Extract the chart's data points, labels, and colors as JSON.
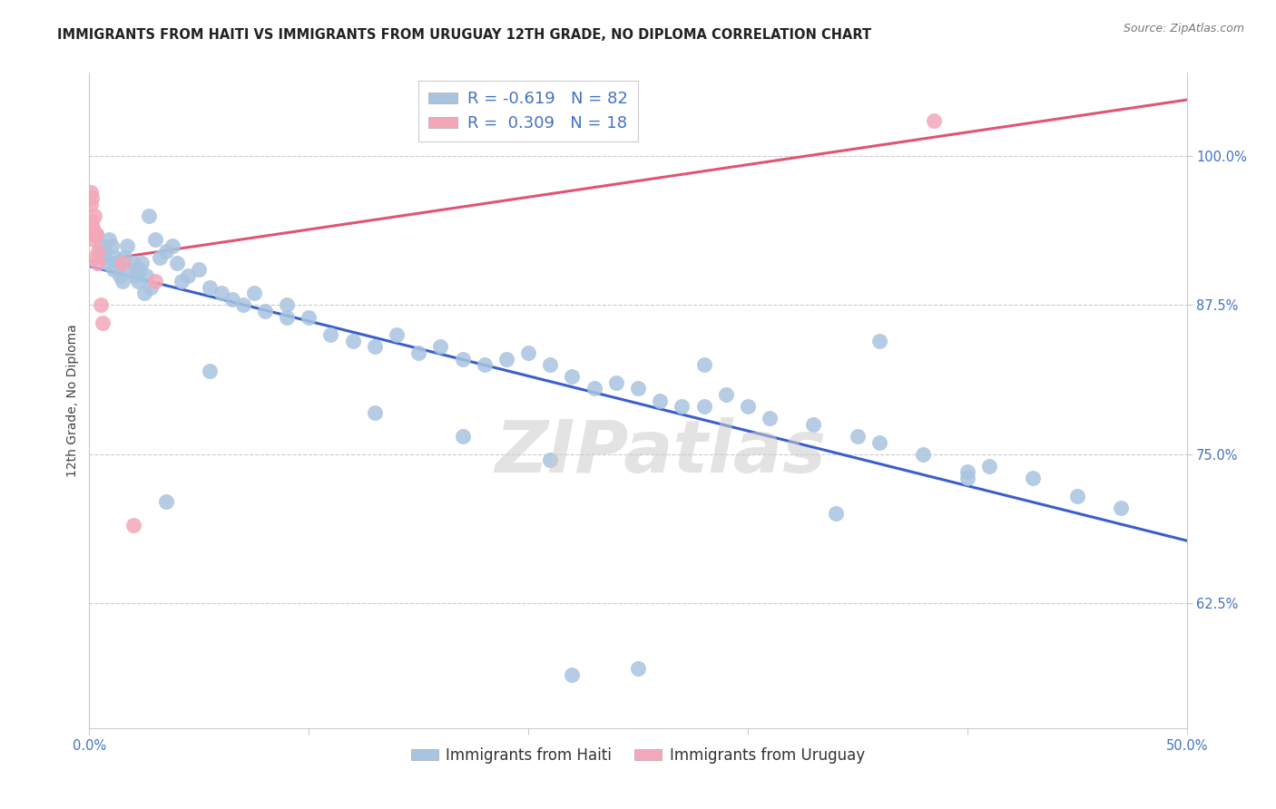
{
  "title": "IMMIGRANTS FROM HAITI VS IMMIGRANTS FROM URUGUAY 12TH GRADE, NO DIPLOMA CORRELATION CHART",
  "source": "Source: ZipAtlas.com",
  "ylabel": "12th Grade, No Diploma",
  "xlim": [
    0.0,
    50.0
  ],
  "ylim": [
    52.0,
    107.0
  ],
  "haiti_color": "#a8c4e0",
  "uruguay_color": "#f4a7b9",
  "haiti_line_color": "#3a5fcd",
  "uruguay_line_color": "#e05575",
  "haiti_scatter_x": [
    0.3,
    0.5,
    0.6,
    0.7,
    0.8,
    0.9,
    1.0,
    1.1,
    1.2,
    1.3,
    1.4,
    1.5,
    1.6,
    1.7,
    1.8,
    2.0,
    2.1,
    2.2,
    2.3,
    2.4,
    2.5,
    2.6,
    2.7,
    2.8,
    3.0,
    3.2,
    3.5,
    3.8,
    4.0,
    4.2,
    4.5,
    5.0,
    5.5,
    6.0,
    6.5,
    7.0,
    7.5,
    8.0,
    9.0,
    10.0,
    11.0,
    12.0,
    13.0,
    14.0,
    15.0,
    16.0,
    17.0,
    18.0,
    19.0,
    20.0,
    21.0,
    22.0,
    23.0,
    24.0,
    25.0,
    26.0,
    27.0,
    28.0,
    29.0,
    30.0,
    31.0,
    33.0,
    35.0,
    36.0,
    38.0,
    40.0,
    41.0,
    43.0,
    45.0,
    47.0,
    25.0,
    34.0,
    5.5,
    3.5,
    9.0,
    13.0,
    17.0,
    21.0,
    28.0,
    36.0,
    22.0,
    40.0
  ],
  "haiti_scatter_y": [
    93.5,
    92.5,
    91.5,
    92.0,
    91.0,
    93.0,
    92.5,
    90.5,
    91.5,
    91.0,
    90.0,
    89.5,
    91.5,
    92.5,
    90.5,
    91.0,
    90.0,
    89.5,
    90.5,
    91.0,
    88.5,
    90.0,
    95.0,
    89.0,
    93.0,
    91.5,
    92.0,
    92.5,
    91.0,
    89.5,
    90.0,
    90.5,
    89.0,
    88.5,
    88.0,
    87.5,
    88.5,
    87.0,
    87.5,
    86.5,
    85.0,
    84.5,
    84.0,
    85.0,
    83.5,
    84.0,
    83.0,
    82.5,
    83.0,
    83.5,
    82.5,
    81.5,
    80.5,
    81.0,
    80.5,
    79.5,
    79.0,
    79.0,
    80.0,
    79.0,
    78.0,
    77.5,
    76.5,
    76.0,
    75.0,
    73.5,
    74.0,
    73.0,
    71.5,
    70.5,
    57.0,
    70.0,
    82.0,
    71.0,
    86.5,
    78.5,
    76.5,
    74.5,
    82.5,
    84.5,
    56.5,
    73.0
  ],
  "uruguay_scatter_x": [
    0.05,
    0.08,
    0.1,
    0.12,
    0.15,
    0.18,
    0.2,
    0.22,
    0.25,
    0.3,
    0.35,
    0.4,
    0.5,
    0.6,
    1.5,
    2.0,
    3.0,
    38.5
  ],
  "uruguay_scatter_y": [
    96.0,
    97.0,
    94.5,
    96.5,
    94.0,
    93.0,
    93.5,
    95.0,
    91.5,
    93.5,
    91.0,
    92.0,
    87.5,
    86.0,
    91.0,
    69.0,
    89.5,
    103.0
  ],
  "watermark": "ZIPatlas",
  "y_ticks": [
    62.5,
    75.0,
    87.5,
    100.0
  ],
  "y_tick_labels": [
    "62.5%",
    "75.0%",
    "87.5%",
    "100.0%"
  ],
  "x_ticks": [
    0,
    10,
    20,
    30,
    40,
    50
  ],
  "x_tick_labels": [
    "0.0%",
    "",
    "",
    "",
    "",
    "50.0%"
  ],
  "haiti_legend_label": "R = -0.619   N = 82",
  "uruguay_legend_label": "R =  0.309   N = 18",
  "haiti_bottom_label": "Immigrants from Haiti",
  "uruguay_bottom_label": "Immigrants from Uruguay",
  "title_fontsize": 10.5,
  "source_fontsize": 9,
  "axis_label_fontsize": 10,
  "tick_fontsize": 10.5,
  "legend_fontsize": 12,
  "background_color": "#ffffff",
  "grid_color": "#cccccc"
}
